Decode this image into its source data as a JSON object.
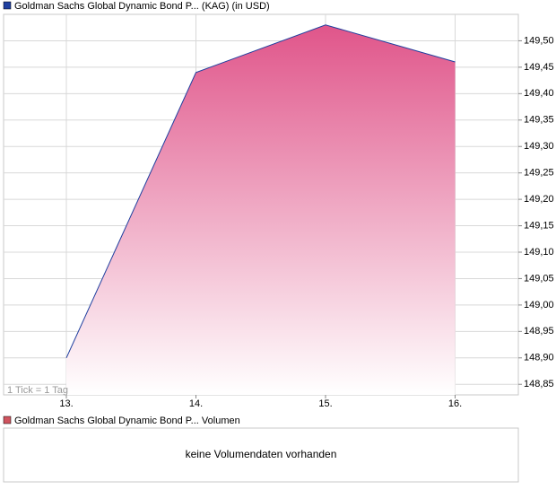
{
  "chart_data": {
    "type": "area",
    "categories": [
      "13.",
      "14.",
      "15.",
      "16."
    ],
    "series": [
      {
        "name": "Goldman Sachs Global Dynamic Bond P... (KAG) (in USD)",
        "color": "#1f3f9f",
        "fill": "#e0558a",
        "values": [
          148.9,
          149.44,
          149.53,
          149.46
        ]
      }
    ],
    "ylim": [
      148.83,
      149.55
    ],
    "yticks": [
      {
        "value": 148.85,
        "label": "148,85"
      },
      {
        "value": 148.9,
        "label": "148,90"
      },
      {
        "value": 148.95,
        "label": "148,95"
      },
      {
        "value": 149.0,
        "label": "149,00"
      },
      {
        "value": 149.05,
        "label": "149,05"
      },
      {
        "value": 149.1,
        "label": "149,10"
      },
      {
        "value": 149.15,
        "label": "149,15"
      },
      {
        "value": 149.2,
        "label": "149,20"
      },
      {
        "value": 149.25,
        "label": "149,25"
      },
      {
        "value": 149.3,
        "label": "149,30"
      },
      {
        "value": 149.35,
        "label": "149,35"
      },
      {
        "value": 149.4,
        "label": "149,40"
      },
      {
        "value": 149.45,
        "label": "149,45"
      },
      {
        "value": 149.5,
        "label": "149,50"
      }
    ],
    "grid": true,
    "annotation": "1 Tick = 1 Tag"
  },
  "volume_panel": {
    "legend": "Goldman Sachs Global Dynamic Bond P... Volumen",
    "color": "#d0545f",
    "message": "keine Volumendaten vorhanden"
  }
}
